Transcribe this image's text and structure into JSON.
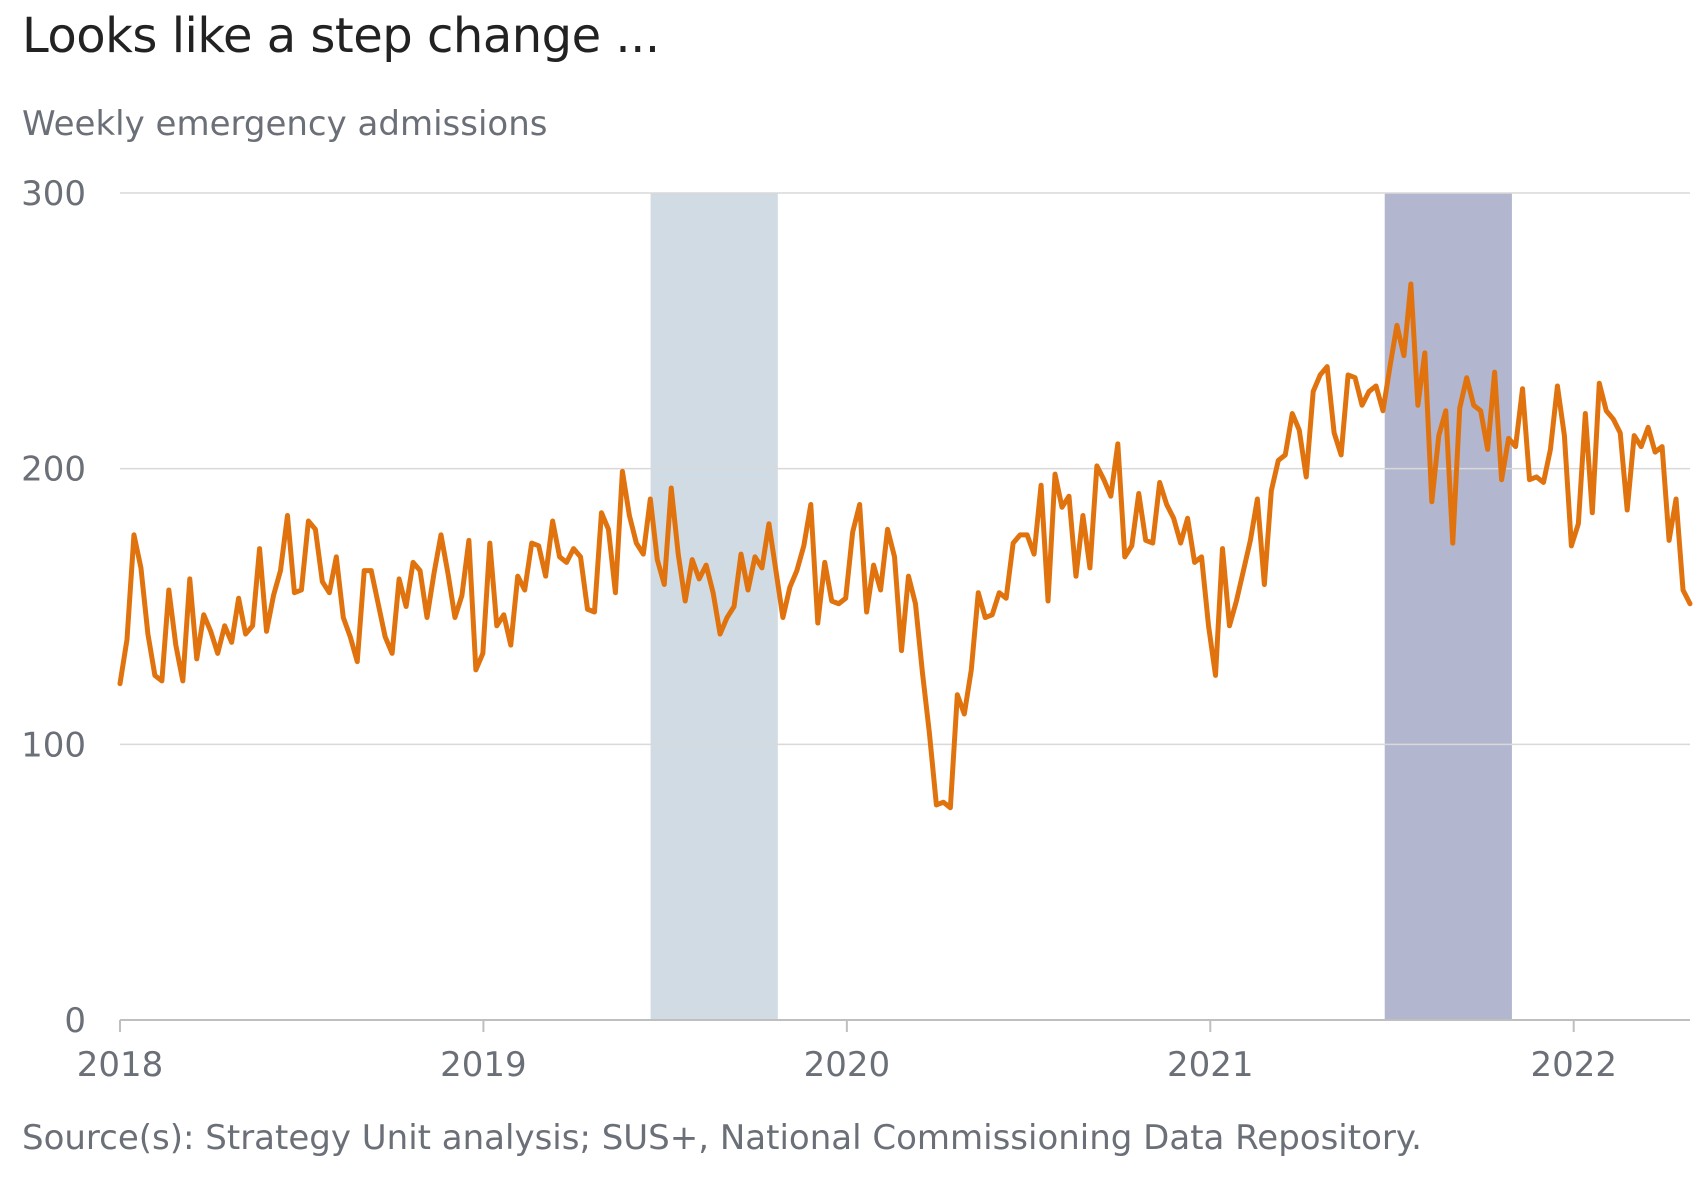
{
  "title": "Looks like a step change ...",
  "subtitle": "Weekly emergency admissions",
  "source": "Source(s): Strategy Unit analysis; SUS+, National Commissioning Data Repository.",
  "chart_data": {
    "type": "line",
    "title": "Looks like a step change ...",
    "ylabel": "Weekly emergency admissions",
    "xlabel": "",
    "xlim": [
      2018.0,
      2022.32
    ],
    "ylim": [
      0,
      300
    ],
    "yticks": [
      0,
      100,
      200,
      300
    ],
    "xticks": [
      "2018",
      "2019",
      "2020",
      "2021",
      "2022"
    ],
    "grid": "horizontal",
    "colors": {
      "line": "#e0730e",
      "band1": "#d0dbe4",
      "band2": "#b3b6cf",
      "grid": "#d9d9d9",
      "axis": "#bfbfbf"
    },
    "bands": [
      {
        "x_start": 2019.46,
        "x_end": 2019.81
      },
      {
        "x_start": 2021.48,
        "x_end": 2021.83
      }
    ],
    "series": [
      {
        "values": [
          122,
          138,
          176,
          164,
          140,
          125,
          123,
          156,
          136,
          123,
          160,
          131,
          147,
          141,
          133,
          143,
          137,
          153,
          140,
          143,
          171,
          141,
          154,
          163,
          183,
          155,
          156,
          181,
          178,
          159,
          155,
          168,
          146,
          139,
          130,
          163,
          163,
          151,
          139,
          133,
          160,
          150,
          166,
          163,
          146,
          162,
          176,
          162,
          146,
          154,
          174,
          127,
          133,
          173,
          143,
          147,
          136,
          161,
          156,
          173,
          172,
          161,
          181,
          168,
          166,
          171,
          168,
          149,
          148,
          184,
          178,
          155,
          199,
          183,
          173,
          169,
          189,
          167,
          158,
          193,
          169,
          152,
          167,
          160,
          165,
          155,
          140,
          146,
          150,
          169,
          156,
          168,
          164,
          180,
          163,
          146,
          157,
          163,
          172,
          187,
          144,
          166,
          152,
          151,
          153,
          177,
          187,
          148,
          165,
          156,
          178,
          168,
          134,
          161,
          151,
          126,
          104,
          78,
          79,
          77,
          118,
          111,
          127,
          155,
          146,
          147,
          155,
          153,
          173,
          176,
          176,
          169,
          194,
          152,
          198,
          186,
          190,
          161,
          183,
          164,
          201,
          196,
          190,
          209,
          168,
          172,
          191,
          174,
          173,
          195,
          187,
          182,
          173,
          182,
          166,
          168,
          143,
          125,
          171,
          143,
          152,
          163,
          174,
          189,
          158,
          192,
          203,
          205,
          220,
          214,
          197,
          228,
          234,
          237,
          213,
          205,
          234,
          233,
          223,
          228,
          230,
          221,
          237,
          252,
          241,
          267,
          223,
          242,
          188,
          212,
          221,
          173,
          222,
          233,
          223,
          221,
          207,
          235,
          196,
          211,
          208,
          229,
          196,
          197,
          195,
          207,
          230,
          212,
          172,
          180,
          220,
          184,
          231,
          221,
          218,
          213,
          185,
          212,
          208,
          215,
          206,
          208,
          174,
          189,
          156,
          151
        ]
      }
    ]
  }
}
